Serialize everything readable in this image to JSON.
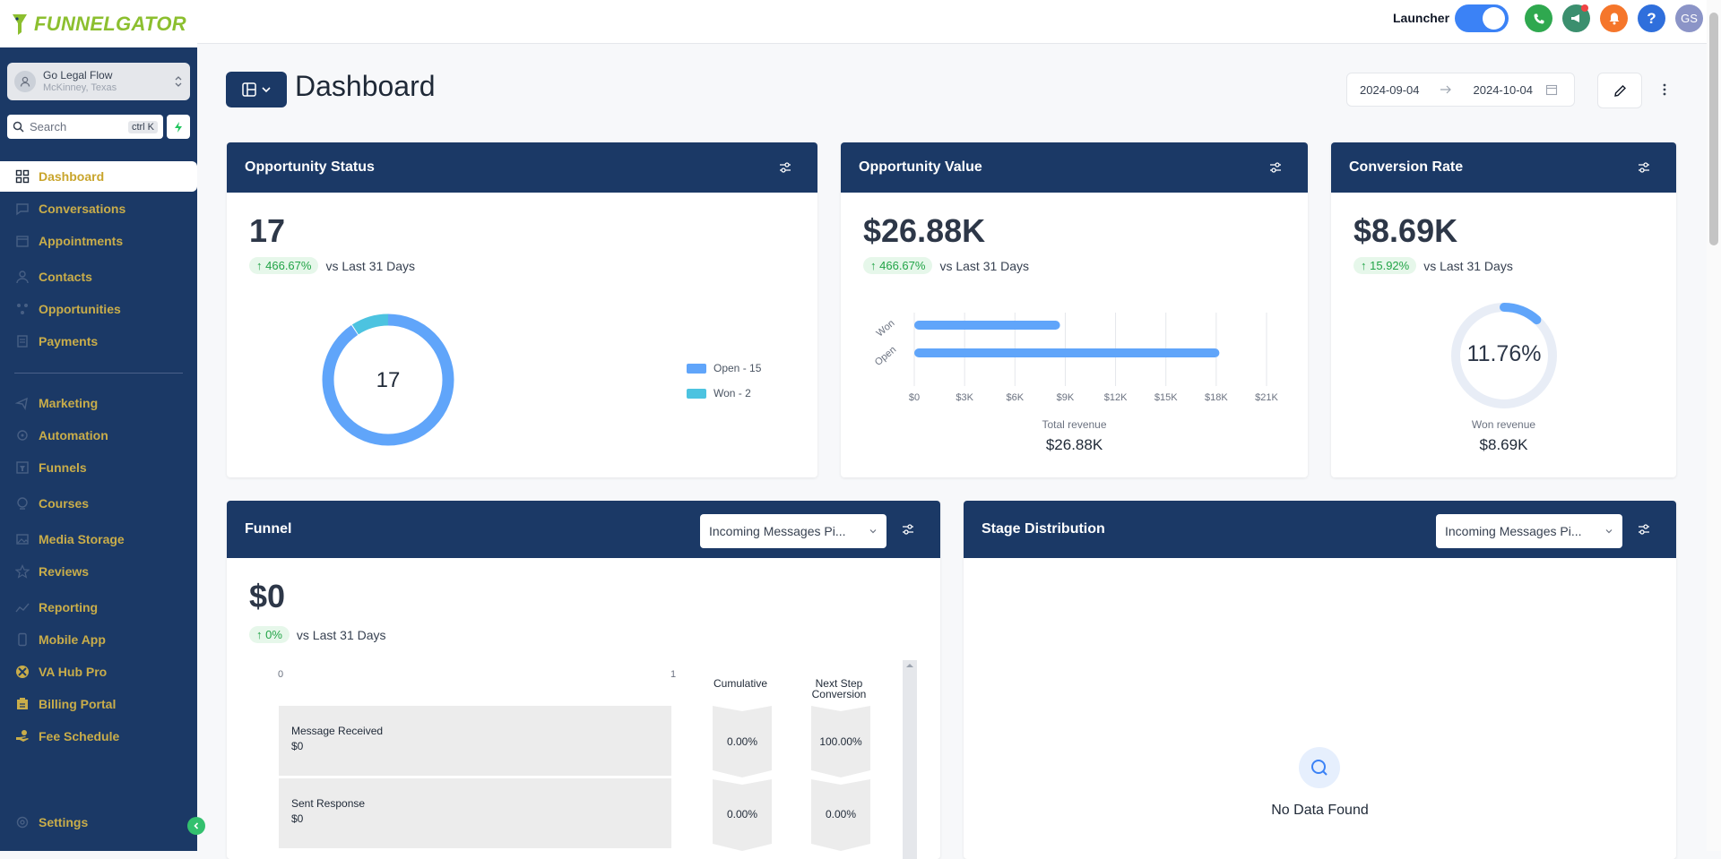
{
  "brand": {
    "logo_text": "FUNNELGATOR",
    "brand_color": "#8cbf2f"
  },
  "account": {
    "name": "Go Legal Flow",
    "location": "McKinney, Texas"
  },
  "search": {
    "placeholder": "Search",
    "shortcut": "ctrl K"
  },
  "nav": {
    "items": [
      {
        "label": "Dashboard",
        "icon": "dashboard-icon",
        "active": true
      },
      {
        "label": "Conversations",
        "icon": "chat-icon"
      },
      {
        "label": "Appointments",
        "icon": "calendar-icon"
      },
      {
        "label": "Contacts",
        "icon": "user-icon"
      },
      {
        "label": "Opportunities",
        "icon": "opportunities-icon"
      },
      {
        "label": "Payments",
        "icon": "payments-icon"
      },
      {
        "label": "Marketing",
        "icon": "marketing-icon"
      },
      {
        "label": "Automation",
        "icon": "automation-icon"
      },
      {
        "label": "Funnels",
        "icon": "funnel-icon"
      },
      {
        "label": "Courses",
        "icon": "courses-icon"
      },
      {
        "label": "Media Storage",
        "icon": "media-icon"
      },
      {
        "label": "Reviews",
        "icon": "star-icon"
      },
      {
        "label": "Reporting",
        "icon": "reporting-icon"
      },
      {
        "label": "Mobile App",
        "icon": "mobile-icon"
      },
      {
        "label": "VA Hub Pro",
        "icon": "hub-icon"
      },
      {
        "label": "Billing Portal",
        "icon": "billing-icon"
      },
      {
        "label": "Fee Schedule",
        "icon": "fee-icon"
      }
    ],
    "settings_label": "Settings",
    "accent_color": "#c9ad4a"
  },
  "topbar": {
    "launcher_label": "Launcher",
    "launcher_on": true,
    "avatar_initials": "GS",
    "colors": {
      "phone": "#2fa84f",
      "announce": "#3b8f6e",
      "bell": "#f5762b",
      "help": "#2f6fdc",
      "avatar": "#8b94c7"
    }
  },
  "header": {
    "title": "Dashboard",
    "date_start": "2024-09-04",
    "date_end": "2024-10-04"
  },
  "cards": {
    "opportunity_status": {
      "title": "Opportunity Status",
      "value": "17",
      "change": "466.67%",
      "comparison": "vs Last 31 Days",
      "center_label": "17",
      "legend": [
        {
          "label": "Open - 15",
          "color": "#60a5fa"
        },
        {
          "label": "Won - 2",
          "color": "#4cc3e0"
        }
      ]
    },
    "opportunity_value": {
      "title": "Opportunity Value",
      "value": "$26.88K",
      "change": "466.67%",
      "comparison": "vs Last 31 Days",
      "total_label": "Total revenue",
      "total_value": "$26.88K"
    },
    "conversion_rate": {
      "title": "Conversion Rate",
      "value": "$8.69K",
      "change": "15.92%",
      "comparison": "vs Last 31 Days",
      "gauge_label": "11.76%",
      "gauge_fraction": 0.1176,
      "sub_label": "Won revenue",
      "sub_value": "$8.69K"
    },
    "funnel": {
      "title": "Funnel",
      "pipeline": "Incoming Messages Pi...",
      "value": "$0",
      "change": "0%",
      "comparison": "vs Last 31 Days",
      "axis_min": "0",
      "axis_max": "1",
      "col_cumulative": "Cumulative",
      "col_next_line1": "Next Step",
      "col_next_line2": "Conversion",
      "stages": [
        {
          "name": "Message Received",
          "amount": "$0",
          "cumulative": "0.00%",
          "next": "100.00%"
        },
        {
          "name": "Sent Response",
          "amount": "$0",
          "cumulative": "0.00%",
          "next": "0.00%"
        }
      ]
    },
    "stage_distribution": {
      "title": "Stage Distribution",
      "pipeline": "Incoming Messages Pi...",
      "empty_text": "No Data Found"
    }
  },
  "chart_data": {
    "type": "bar",
    "orientation": "horizontal",
    "categories": [
      "Won",
      "Open"
    ],
    "values": [
      8690,
      18190
    ],
    "xlim": [
      0,
      21000
    ],
    "x_ticks": [
      "$0",
      "$3K",
      "$6K",
      "$9K",
      "$12K",
      "$15K",
      "$18K",
      "$21K"
    ],
    "grid": true,
    "color": "#60a5fa"
  }
}
